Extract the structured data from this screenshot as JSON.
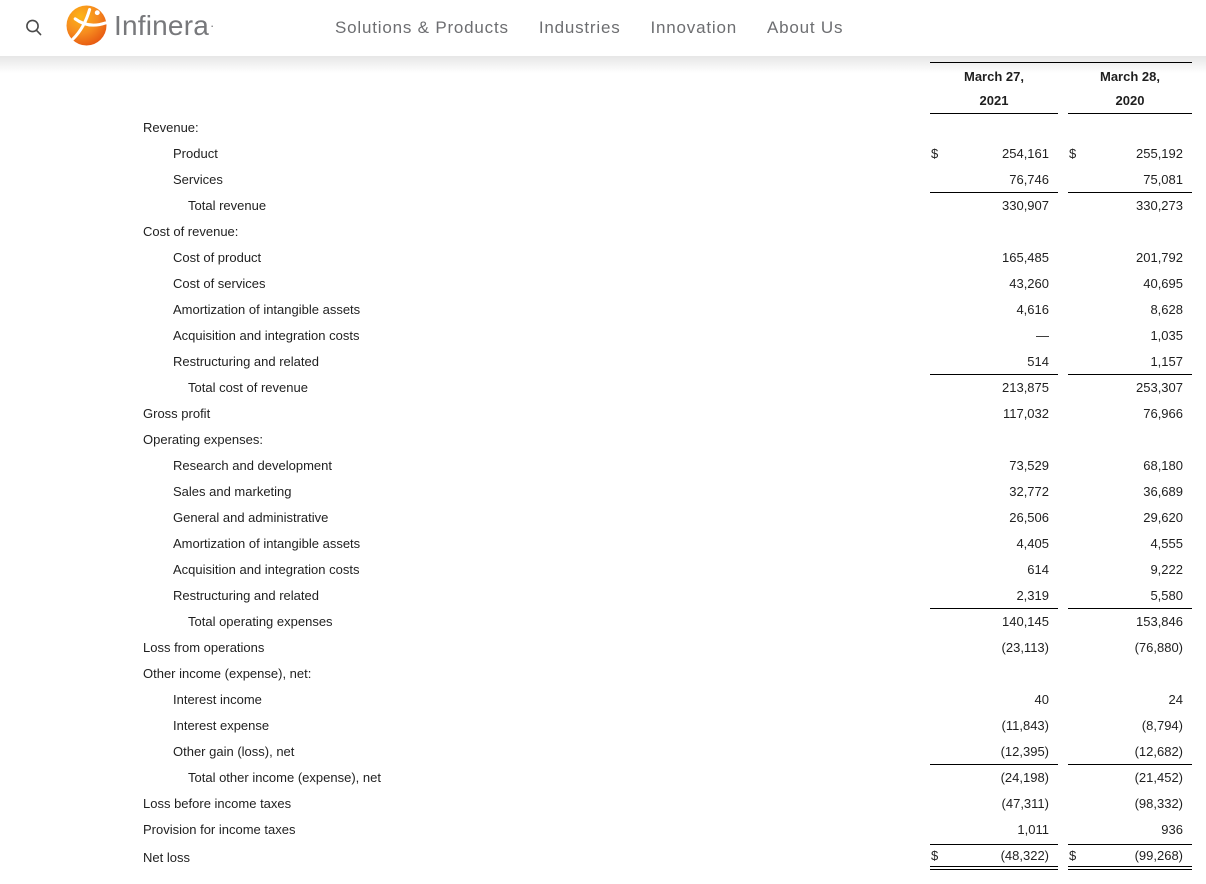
{
  "header": {
    "logo_text": "Infinera",
    "logo_tm": "·",
    "search_icon": "magnifier",
    "nav": [
      {
        "label": "Solutions & Products"
      },
      {
        "label": "Industries"
      },
      {
        "label": "Innovation"
      },
      {
        "label": "About Us"
      }
    ]
  },
  "colors": {
    "brand_orange": "#f47d20",
    "brand_orange_dark": "#e34d0e",
    "brand_orange_light": "#fdb515",
    "nav_gray": "#6d6e71",
    "logo_gray": "#77787b",
    "text": "#1f1f1f",
    "rule": "#000000"
  },
  "statement": {
    "columns": [
      {
        "date_line1": "March 27,",
        "date_line2": "2021"
      },
      {
        "date_line1": "March 28,",
        "date_line2": "2020"
      }
    ],
    "rows": [
      {
        "label": "Revenue:",
        "indent": 0,
        "cur1": "",
        "v1": "",
        "cur2": "",
        "v2": "",
        "style": "plain"
      },
      {
        "label": "Product",
        "indent": 1,
        "cur1": "$",
        "v1": "254,161",
        "cur2": "$",
        "v2": "255,192",
        "style": "plain"
      },
      {
        "label": "Services",
        "indent": 1,
        "cur1": "",
        "v1": "76,746",
        "cur2": "",
        "v2": "75,081",
        "style": "plain"
      },
      {
        "label": "Total revenue",
        "indent": 2,
        "cur1": "",
        "v1": "330,907",
        "cur2": "",
        "v2": "330,273",
        "style": "total"
      },
      {
        "label": "Cost of revenue:",
        "indent": 0,
        "cur1": "",
        "v1": "",
        "cur2": "",
        "v2": "",
        "style": "plain"
      },
      {
        "label": "Cost of product",
        "indent": 1,
        "cur1": "",
        "v1": "165,485",
        "cur2": "",
        "v2": "201,792",
        "style": "plain"
      },
      {
        "label": "Cost of services",
        "indent": 1,
        "cur1": "",
        "v1": "43,260",
        "cur2": "",
        "v2": "40,695",
        "style": "plain"
      },
      {
        "label": "Amortization of intangible assets",
        "indent": 1,
        "cur1": "",
        "v1": "4,616",
        "cur2": "",
        "v2": "8,628",
        "style": "plain"
      },
      {
        "label": "Acquisition and integration costs",
        "indent": 1,
        "cur1": "",
        "v1": "—",
        "cur2": "",
        "v2": "1,035",
        "style": "plain"
      },
      {
        "label": "Restructuring and related",
        "indent": 1,
        "cur1": "",
        "v1": "514",
        "cur2": "",
        "v2": "1,157",
        "style": "plain"
      },
      {
        "label": "Total cost of revenue",
        "indent": 2,
        "cur1": "",
        "v1": "213,875",
        "cur2": "",
        "v2": "253,307",
        "style": "total"
      },
      {
        "label": "Gross profit",
        "indent": 0,
        "cur1": "",
        "v1": "117,032",
        "cur2": "",
        "v2": "76,966",
        "style": "plain"
      },
      {
        "label": "Operating expenses:",
        "indent": 0,
        "cur1": "",
        "v1": "",
        "cur2": "",
        "v2": "",
        "style": "plain"
      },
      {
        "label": "Research and development",
        "indent": 1,
        "cur1": "",
        "v1": "73,529",
        "cur2": "",
        "v2": "68,180",
        "style": "plain"
      },
      {
        "label": "Sales and marketing",
        "indent": 1,
        "cur1": "",
        "v1": "32,772",
        "cur2": "",
        "v2": "36,689",
        "style": "plain"
      },
      {
        "label": "General and administrative",
        "indent": 1,
        "cur1": "",
        "v1": "26,506",
        "cur2": "",
        "v2": "29,620",
        "style": "plain"
      },
      {
        "label": "Amortization of intangible assets",
        "indent": 1,
        "cur1": "",
        "v1": "4,405",
        "cur2": "",
        "v2": "4,555",
        "style": "plain"
      },
      {
        "label": "Acquisition and integration costs",
        "indent": 1,
        "cur1": "",
        "v1": "614",
        "cur2": "",
        "v2": "9,222",
        "style": "plain"
      },
      {
        "label": "Restructuring and related",
        "indent": 1,
        "cur1": "",
        "v1": "2,319",
        "cur2": "",
        "v2": "5,580",
        "style": "plain"
      },
      {
        "label": "Total operating expenses",
        "indent": 2,
        "cur1": "",
        "v1": "140,145",
        "cur2": "",
        "v2": "153,846",
        "style": "total"
      },
      {
        "label": "Loss from operations",
        "indent": 0,
        "cur1": "",
        "v1": "(23,113)",
        "cur2": "",
        "v2": "(76,880)",
        "style": "plain"
      },
      {
        "label": "Other income (expense), net:",
        "indent": 0,
        "cur1": "",
        "v1": "",
        "cur2": "",
        "v2": "",
        "style": "plain"
      },
      {
        "label": "Interest income",
        "indent": 1,
        "cur1": "",
        "v1": "40",
        "cur2": "",
        "v2": "24",
        "style": "plain"
      },
      {
        "label": "Interest expense",
        "indent": 1,
        "cur1": "",
        "v1": "(11,843)",
        "cur2": "",
        "v2": "(8,794)",
        "style": "plain"
      },
      {
        "label": "Other gain (loss), net",
        "indent": 1,
        "cur1": "",
        "v1": "(12,395)",
        "cur2": "",
        "v2": "(12,682)",
        "style": "plain"
      },
      {
        "label": "Total other income (expense), net",
        "indent": 2,
        "cur1": "",
        "v1": "(24,198)",
        "cur2": "",
        "v2": "(21,452)",
        "style": "total"
      },
      {
        "label": "Loss before income taxes",
        "indent": 0,
        "cur1": "",
        "v1": "(47,311)",
        "cur2": "",
        "v2": "(98,332)",
        "style": "plain"
      },
      {
        "label": "Provision for income taxes",
        "indent": 0,
        "cur1": "",
        "v1": "1,011",
        "cur2": "",
        "v2": "936",
        "style": "plain"
      },
      {
        "label": "Net loss",
        "indent": 0,
        "cur1": "$",
        "v1": "(48,322)",
        "cur2": "$",
        "v2": "(99,268)",
        "style": "netloss"
      }
    ]
  }
}
